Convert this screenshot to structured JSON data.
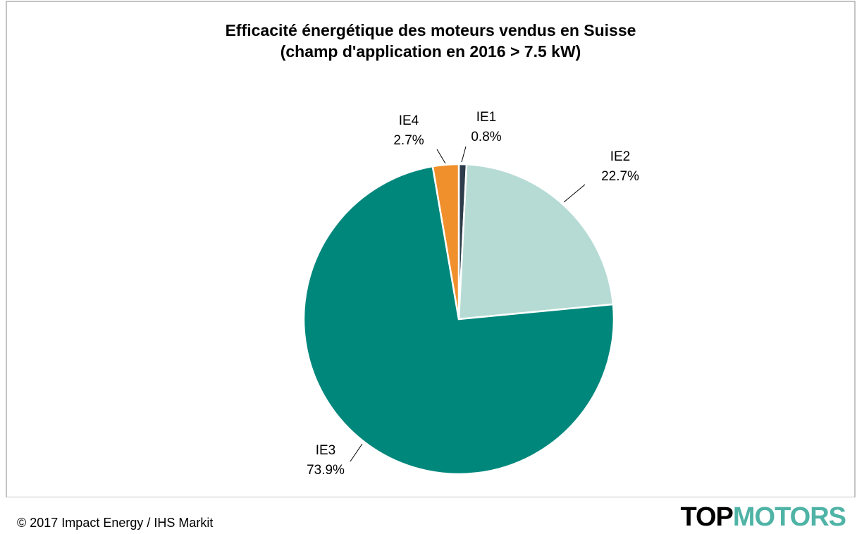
{
  "chart_data": {
    "type": "pie",
    "title": [
      "Efficacité énergétique des moteurs vendus en Suisse",
      "(champ d'application en 2016 > 7.5 kW)"
    ],
    "categories": [
      "IE1",
      "IE2",
      "IE3",
      "IE4"
    ],
    "values": [
      0.8,
      22.7,
      73.9,
      2.7
    ],
    "value_labels": [
      "0.8%",
      "22.7%",
      "73.9%",
      "2.7%"
    ],
    "colors": [
      "#2e3d4b",
      "#b6dbd5",
      "#00877c",
      "#f0902c"
    ]
  },
  "footer": {
    "source": "© 2017 Impact Energy / IHS Markit"
  },
  "logo": {
    "parts": [
      "TOP",
      "MOTORS"
    ]
  }
}
